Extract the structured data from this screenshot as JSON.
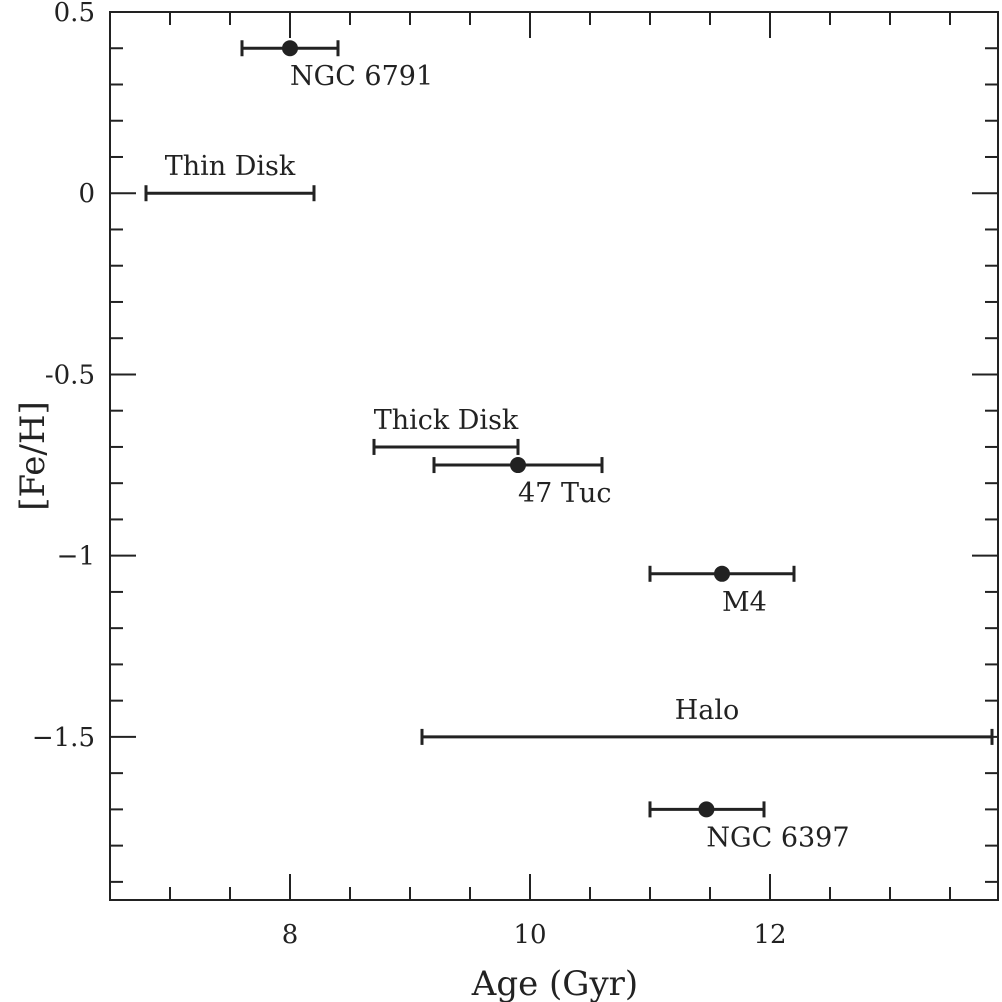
{
  "chart_data": {
    "type": "scatter",
    "title": "",
    "xlabel": "Age (Gyr)",
    "ylabel": "[Fe/H]",
    "xlim": [
      6.5,
      13.9
    ],
    "ylim": [
      -1.95,
      0.5
    ],
    "x_ticks_major": [
      8,
      10,
      12
    ],
    "y_ticks_major": [
      0.5,
      0,
      -0.5,
      -1,
      -1.5
    ],
    "x_tick_labels": [
      "8",
      "10",
      "12"
    ],
    "y_tick_labels": [
      "0.5",
      "0",
      "-0.5",
      "−1",
      "−1.5"
    ],
    "x_tick_minor_step": 0.5,
    "y_tick_minor_step": 0.1,
    "grid": false,
    "series": [
      {
        "points": [
          {
            "label": "NGC 6791",
            "x": 8.0,
            "y": 0.4,
            "xmin": 7.6,
            "xmax": 8.4
          },
          {
            "label": "47 Tuc",
            "x": 9.9,
            "y": -0.75,
            "xmin": 9.2,
            "xmax": 10.6
          },
          {
            "label": "M4",
            "x": 11.6,
            "y": -1.05,
            "xmin": 11.0,
            "xmax": 12.2
          },
          {
            "label": "NGC 6397",
            "x": 11.47,
            "y": -1.7,
            "xmin": 11.0,
            "xmax": 11.95
          }
        ]
      }
    ],
    "ranges": [
      {
        "label": "Thin Disk",
        "y": 0.0,
        "xmin": 6.8,
        "xmax": 8.2
      },
      {
        "label": "Thick Disk",
        "y": -0.7,
        "xmin": 8.7,
        "xmax": 9.9
      },
      {
        "label": "Halo",
        "y": -1.5,
        "xmin": 9.1,
        "xmax": 13.85
      }
    ]
  }
}
